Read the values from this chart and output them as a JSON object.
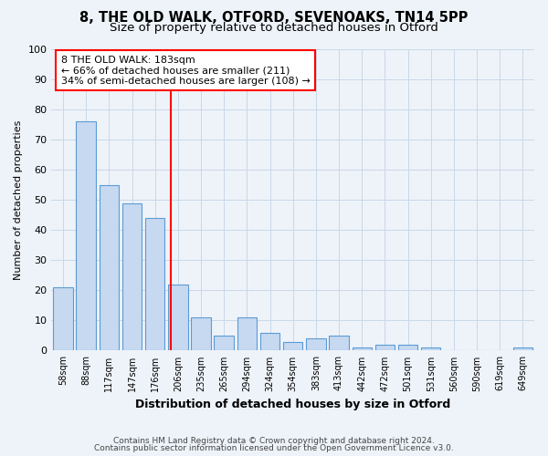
{
  "title1": "8, THE OLD WALK, OTFORD, SEVENOAKS, TN14 5PP",
  "title2": "Size of property relative to detached houses in Otford",
  "xlabel": "Distribution of detached houses by size in Otford",
  "ylabel": "Number of detached properties",
  "bin_labels": [
    "58sqm",
    "88sqm",
    "117sqm",
    "147sqm",
    "176sqm",
    "206sqm",
    "235sqm",
    "265sqm",
    "294sqm",
    "324sqm",
    "354sqm",
    "383sqm",
    "413sqm",
    "442sqm",
    "472sqm",
    "501sqm",
    "531sqm",
    "560sqm",
    "590sqm",
    "619sqm",
    "649sqm"
  ],
  "bar_heights": [
    21,
    76,
    55,
    49,
    44,
    22,
    11,
    5,
    11,
    6,
    3,
    4,
    5,
    1,
    2,
    2,
    1,
    0,
    0,
    0,
    1
  ],
  "bar_color": "#c6d9f0",
  "bar_edge_color": "#5b9bd5",
  "red_line_x": 4.67,
  "annotation_line1": "8 THE OLD WALK: 183sqm",
  "annotation_line2": "← 66% of detached houses are smaller (211)",
  "annotation_line3": "34% of semi-detached houses are larger (108) →",
  "annotation_box_color": "white",
  "annotation_box_edge_color": "red",
  "red_line_color": "red",
  "ylim": [
    0,
    100
  ],
  "yticks": [
    0,
    10,
    20,
    30,
    40,
    50,
    60,
    70,
    80,
    90,
    100
  ],
  "grid_color": "#c8d8e8",
  "footer1": "Contains HM Land Registry data © Crown copyright and database right 2024.",
  "footer2": "Contains public sector information licensed under the Open Government Licence v3.0.",
  "bg_color": "#eef3f9",
  "title1_fontsize": 10.5,
  "title2_fontsize": 9.5,
  "annotation_fontsize": 8.0,
  "xlabel_fontsize": 9,
  "ylabel_fontsize": 8,
  "xtick_fontsize": 7,
  "ytick_fontsize": 8,
  "footer_fontsize": 6.5
}
